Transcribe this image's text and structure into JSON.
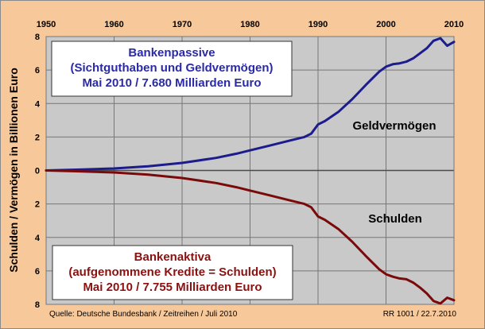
{
  "chart_data": {
    "type": "line",
    "ylabel": "Schulden / Vermögen in Billionen Euro",
    "x_ticks": [
      "1950",
      "1960",
      "1970",
      "1980",
      "1990",
      "2000",
      "2010"
    ],
    "y_tick_labels": [
      "8",
      "6",
      "4",
      "2",
      "0",
      "2",
      "4",
      "6",
      "8"
    ],
    "xlim": [
      1950,
      2010
    ],
    "ylim": [
      -8,
      8
    ],
    "grid": true,
    "series": [
      {
        "name": "Geldvermögen",
        "color": "#1c1c8c",
        "x": [
          1950,
          1955,
          1960,
          1965,
          1970,
          1975,
          1978,
          1980,
          1983,
          1986,
          1988,
          1989,
          1990,
          1991,
          1993,
          1995,
          1997,
          1999,
          2000,
          2001,
          2002,
          2003,
          2004,
          2005,
          2006,
          2007,
          2008,
          2009,
          2010
        ],
        "values": [
          0.0,
          0.05,
          0.12,
          0.25,
          0.45,
          0.75,
          1.0,
          1.2,
          1.5,
          1.8,
          2.0,
          2.2,
          2.75,
          2.95,
          3.5,
          4.25,
          5.1,
          5.9,
          6.2,
          6.35,
          6.4,
          6.5,
          6.7,
          7.0,
          7.3,
          7.75,
          7.9,
          7.45,
          7.68
        ]
      },
      {
        "name": "Schulden",
        "color": "#7a0a0a",
        "x": [
          1950,
          1955,
          1960,
          1965,
          1970,
          1975,
          1978,
          1980,
          1983,
          1986,
          1988,
          1989,
          1990,
          1991,
          1993,
          1995,
          1997,
          1999,
          2000,
          2001,
          2002,
          2003,
          2004,
          2005,
          2006,
          2007,
          2008,
          2009,
          2010
        ],
        "values": [
          0.0,
          -0.05,
          -0.12,
          -0.25,
          -0.45,
          -0.75,
          -1.0,
          -1.2,
          -1.5,
          -1.8,
          -2.0,
          -2.2,
          -2.75,
          -2.95,
          -3.5,
          -4.25,
          -5.1,
          -5.9,
          -6.2,
          -6.35,
          -6.45,
          -6.5,
          -6.7,
          -7.0,
          -7.35,
          -7.8,
          -7.95,
          -7.6,
          -7.755
        ]
      }
    ],
    "boxes": [
      {
        "lines": [
          "Bankenpassive",
          "(Sichtguthaben und Geldvermögen)",
          "Mai 2010 / 7.680 Milliarden Euro"
        ],
        "color": "#2a2aa8"
      },
      {
        "lines": [
          "Bankenaktiva",
          "(aufgenommene Kredite = Schulden)",
          "Mai 2010 / 7.755 Milliarden Euro"
        ],
        "color": "#8b1010"
      }
    ],
    "series_labels": [
      "Geldvermögen",
      "Schulden"
    ],
    "source": "Quelle: Deutsche Bundesbank / Zeitreihen / Juli 2010",
    "reference": "RR 1001 / 22.7.2010"
  }
}
